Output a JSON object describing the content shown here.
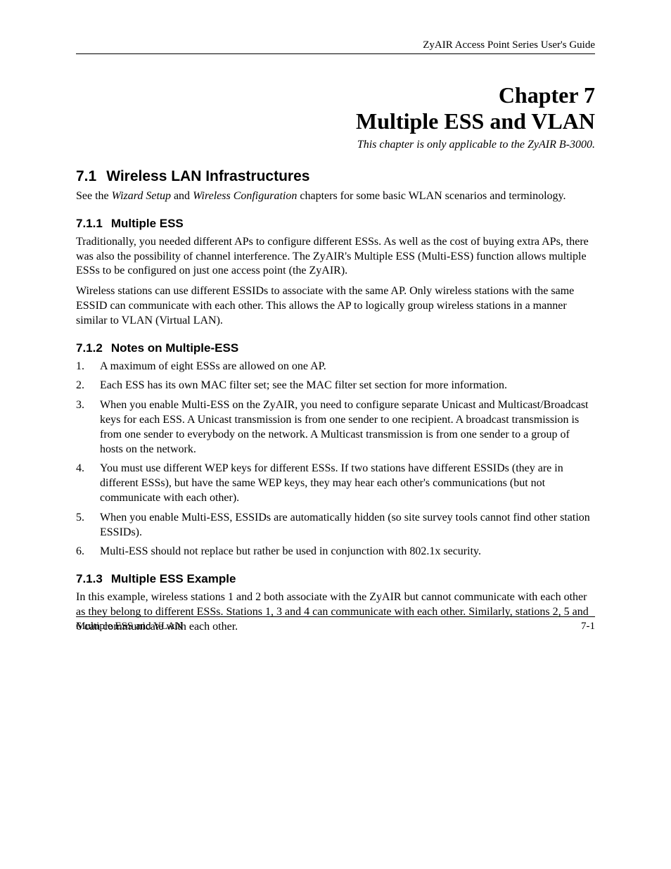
{
  "header": {
    "doc_title": "ZyAIR Access Point Series User's Guide"
  },
  "chapter": {
    "line1": "Chapter 7",
    "line2": "Multiple ESS and VLAN",
    "note": "This chapter is only applicable to the ZyAIR B-3000."
  },
  "section_7_1": {
    "number": "7.1",
    "title": "Wireless LAN Infrastructures",
    "intro_pre": "See the ",
    "intro_i1": "Wizard Setup",
    "intro_mid": " and ",
    "intro_i2": "Wireless Configuration",
    "intro_post": " chapters for some basic WLAN scenarios and terminology."
  },
  "section_7_1_1": {
    "number": "7.1.1",
    "title": "Multiple ESS",
    "p1": "Traditionally, you needed different APs to configure different ESSs. As well as the cost of buying extra APs, there was also the possibility of channel interference. The ZyAIR's Multiple ESS (Multi-ESS) function allows multiple ESSs to be configured on just one access point (the ZyAIR).",
    "p2": "Wireless stations can use different ESSIDs to associate with the same AP. Only wireless stations with the same ESSID can communicate with each other. This allows the AP to logically group wireless stations in a manner similar to VLAN (Virtual LAN)."
  },
  "section_7_1_2": {
    "number": "7.1.2",
    "title": "Notes on Multiple-ESS",
    "items": [
      {
        "n": "1.",
        "t": "A maximum of eight ESSs are allowed on one AP."
      },
      {
        "n": "2.",
        "t": "Each ESS has its own MAC filter set; see the MAC filter set section for more information."
      },
      {
        "n": "3.",
        "t": "When you enable Multi-ESS on the ZyAIR, you need to configure separate Unicast and Multicast/Broadcast keys for each ESS. A Unicast transmission is from one sender to one recipient. A broadcast transmission is from one sender to everybody on the network. A Multicast transmission is from one sender to a group of hosts on the network."
      },
      {
        "n": "4.",
        "t": "You must use different WEP keys for different ESSs. If two stations have different ESSIDs (they are in different ESSs), but have the same WEP keys, they may hear each other's communications (but not communicate with each other)."
      },
      {
        "n": "5.",
        "t": "When you enable Multi-ESS, ESSIDs are automatically hidden (so site survey tools cannot find other station ESSIDs)."
      },
      {
        "n": "6.",
        "t": "Multi-ESS should not replace but rather be used in conjunction with 802.1x security."
      }
    ]
  },
  "section_7_1_3": {
    "number": "7.1.3",
    "title": "Multiple ESS Example",
    "p1": "In this example, wireless stations 1 and 2 both associate with the ZyAIR but cannot communicate with each other as they belong to different ESSs. Stations 1, 3 and 4 can communicate with each other. Similarly, stations 2, 5 and 6 can communicate with each other."
  },
  "footer": {
    "left": "Multiple ESS and VLAN",
    "right": "7-1"
  }
}
